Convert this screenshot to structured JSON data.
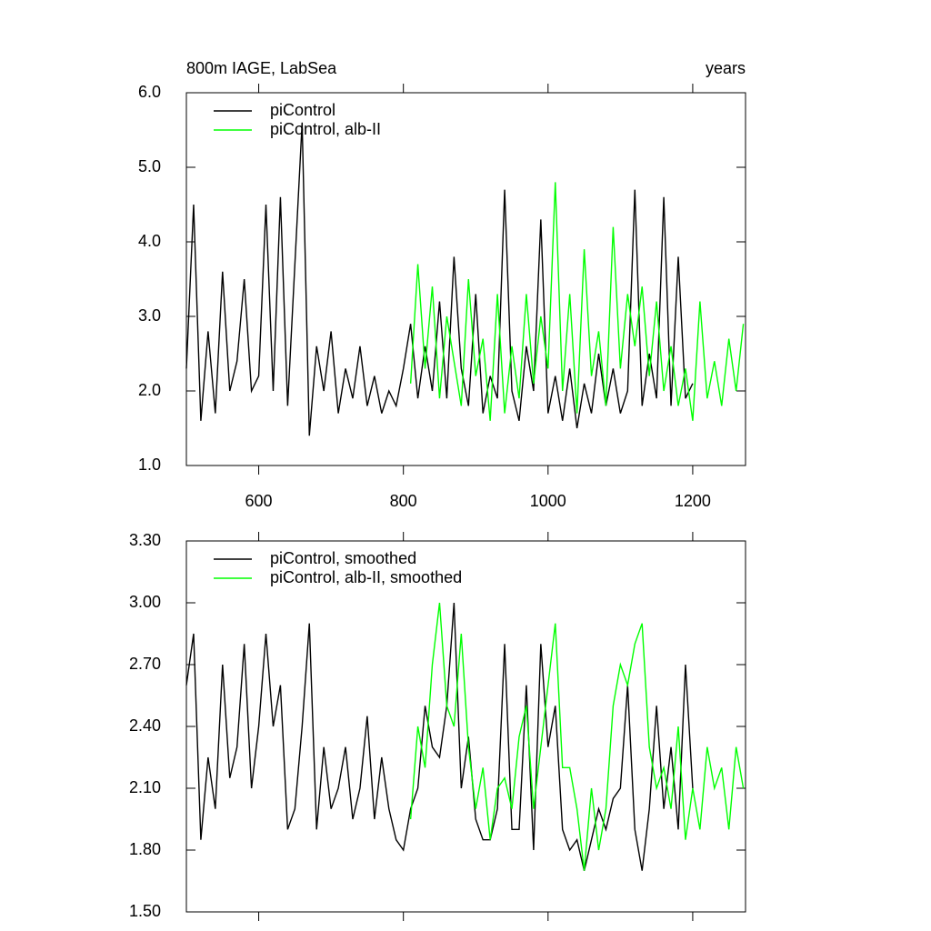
{
  "chart_data": [
    {
      "type": "line",
      "title": "800m IAGE, LabSea",
      "units": "years",
      "xlim": [
        500,
        1273
      ],
      "xticks": [
        600,
        800,
        1000,
        1200
      ],
      "xtick_labels": true,
      "ylim": [
        1,
        6
      ],
      "yticks": [
        {
          "value": 1,
          "label": "1.0"
        },
        {
          "value": 2,
          "label": "2.0"
        },
        {
          "value": 3,
          "label": "3.0"
        },
        {
          "value": 4,
          "label": "4.0"
        },
        {
          "value": 5,
          "label": "5.0"
        },
        {
          "value": 6,
          "label": "6.0"
        }
      ],
      "legend": "upper left",
      "series": [
        {
          "name": "piControl",
          "color": "#000000",
          "x": [
            500,
            510,
            520,
            530,
            540,
            550,
            560,
            570,
            580,
            590,
            600,
            610,
            620,
            630,
            640,
            650,
            660,
            670,
            680,
            690,
            700,
            710,
            720,
            730,
            740,
            750,
            760,
            770,
            780,
            790,
            800,
            810,
            820,
            830,
            840,
            850,
            860,
            870,
            880,
            890,
            900,
            910,
            920,
            930,
            940,
            950,
            960,
            970,
            980,
            990,
            1000,
            1010,
            1020,
            1030,
            1040,
            1050,
            1060,
            1070,
            1080,
            1090,
            1100,
            1110,
            1120,
            1130,
            1140,
            1150,
            1160,
            1170,
            1180,
            1190,
            1200
          ],
          "values": [
            2.3,
            4.5,
            1.6,
            2.8,
            1.7,
            3.6,
            2.0,
            2.4,
            3.5,
            2.0,
            2.2,
            4.5,
            2.0,
            4.6,
            1.8,
            3.7,
            5.6,
            1.4,
            2.6,
            2.0,
            2.8,
            1.7,
            2.3,
            1.9,
            2.6,
            1.8,
            2.2,
            1.7,
            2.0,
            1.8,
            2.3,
            2.9,
            1.9,
            2.6,
            2.0,
            3.2,
            1.9,
            3.8,
            2.3,
            1.8,
            3.3,
            1.7,
            2.2,
            1.9,
            4.7,
            2.0,
            1.6,
            2.6,
            2.0,
            4.3,
            1.7,
            2.2,
            1.6,
            2.3,
            1.5,
            2.1,
            1.7,
            2.5,
            1.8,
            2.3,
            1.7,
            2.0,
            4.7,
            1.8,
            2.5,
            1.9,
            4.6,
            1.8,
            3.8,
            1.9,
            2.1
          ]
        },
        {
          "name": "piControl, alb-II",
          "color": "#00ff00",
          "x": [
            810,
            820,
            830,
            840,
            850,
            860,
            870,
            880,
            890,
            900,
            910,
            920,
            930,
            940,
            950,
            960,
            970,
            980,
            990,
            1000,
            1010,
            1020,
            1030,
            1040,
            1050,
            1060,
            1070,
            1080,
            1090,
            1100,
            1110,
            1120,
            1130,
            1140,
            1150,
            1160,
            1170,
            1180,
            1190,
            1200,
            1210,
            1220,
            1230,
            1240,
            1250,
            1260,
            1270
          ],
          "values": [
            2.1,
            3.7,
            2.3,
            3.4,
            1.9,
            3.0,
            2.4,
            1.8,
            3.5,
            2.2,
            2.7,
            1.6,
            3.3,
            1.7,
            2.6,
            1.9,
            3.3,
            2.1,
            3.0,
            2.3,
            4.8,
            2.0,
            3.3,
            1.7,
            3.9,
            2.2,
            2.8,
            1.8,
            4.2,
            2.3,
            3.3,
            2.6,
            3.4,
            2.2,
            3.2,
            2.0,
            2.6,
            1.8,
            2.3,
            1.6,
            3.2,
            1.9,
            2.4,
            1.8,
            2.7,
            2.0,
            2.9
          ]
        }
      ]
    },
    {
      "type": "line",
      "xlim": [
        500,
        1273
      ],
      "xticks": [
        600,
        800,
        1000,
        1200
      ],
      "xtick_labels": false,
      "ylim": [
        1.5,
        3.3
      ],
      "yticks": [
        {
          "value": 1.5,
          "label": "1.50"
        },
        {
          "value": 1.8,
          "label": "1.80"
        },
        {
          "value": 2.1,
          "label": "2.10"
        },
        {
          "value": 2.4,
          "label": "2.40"
        },
        {
          "value": 2.7,
          "label": "2.70"
        },
        {
          "value": 3.0,
          "label": "3.00"
        },
        {
          "value": 3.3,
          "label": "3.30"
        }
      ],
      "legend": "upper left",
      "series": [
        {
          "name": "piControl, smoothed",
          "color": "#000000",
          "x": [
            500,
            510,
            520,
            530,
            540,
            550,
            560,
            570,
            580,
            590,
            600,
            610,
            620,
            630,
            640,
            650,
            660,
            670,
            680,
            690,
            700,
            710,
            720,
            730,
            740,
            750,
            760,
            770,
            780,
            790,
            800,
            810,
            820,
            830,
            840,
            850,
            860,
            870,
            880,
            890,
            900,
            910,
            920,
            930,
            940,
            950,
            960,
            970,
            980,
            990,
            1000,
            1010,
            1020,
            1030,
            1040,
            1050,
            1060,
            1070,
            1080,
            1090,
            1100,
            1110,
            1120,
            1130,
            1140,
            1150,
            1160,
            1170,
            1180,
            1190,
            1200
          ],
          "values": [
            2.6,
            2.85,
            1.85,
            2.25,
            2.0,
            2.7,
            2.15,
            2.3,
            2.8,
            2.1,
            2.4,
            2.85,
            2.4,
            2.6,
            1.9,
            2.0,
            2.4,
            2.9,
            1.9,
            2.3,
            2.0,
            2.1,
            2.3,
            1.95,
            2.1,
            2.45,
            1.95,
            2.25,
            2.0,
            1.85,
            1.8,
            2.0,
            2.1,
            2.5,
            2.3,
            2.25,
            2.5,
            3.0,
            2.1,
            2.35,
            1.95,
            1.85,
            1.85,
            2.0,
            2.8,
            1.9,
            1.9,
            2.6,
            1.8,
            2.8,
            2.3,
            2.5,
            1.9,
            1.8,
            1.85,
            1.7,
            1.85,
            2.0,
            1.9,
            2.05,
            2.1,
            2.6,
            1.9,
            1.7,
            2.0,
            2.5,
            2.0,
            2.3,
            1.9,
            2.7,
            2.1
          ]
        },
        {
          "name": "piControl, alb-II, smoothed",
          "color": "#00ff00",
          "x": [
            810,
            820,
            830,
            840,
            850,
            860,
            870,
            880,
            890,
            900,
            910,
            920,
            930,
            940,
            950,
            960,
            970,
            980,
            990,
            1000,
            1010,
            1020,
            1030,
            1040,
            1050,
            1060,
            1070,
            1080,
            1090,
            1100,
            1110,
            1120,
            1130,
            1140,
            1150,
            1160,
            1170,
            1180,
            1190,
            1200,
            1210,
            1220,
            1230,
            1240,
            1250,
            1260,
            1270
          ],
          "values": [
            1.95,
            2.4,
            2.2,
            2.7,
            3.0,
            2.5,
            2.4,
            2.85,
            2.3,
            2.0,
            2.2,
            1.85,
            2.1,
            2.15,
            2.0,
            2.35,
            2.5,
            2.0,
            2.3,
            2.6,
            2.9,
            2.2,
            2.2,
            2.0,
            1.7,
            2.1,
            1.8,
            2.0,
            2.5,
            2.7,
            2.6,
            2.8,
            2.9,
            2.3,
            2.1,
            2.2,
            2.0,
            2.4,
            1.85,
            2.1,
            1.9,
            2.3,
            2.1,
            2.2,
            1.9,
            2.3,
            2.1
          ]
        }
      ]
    }
  ]
}
